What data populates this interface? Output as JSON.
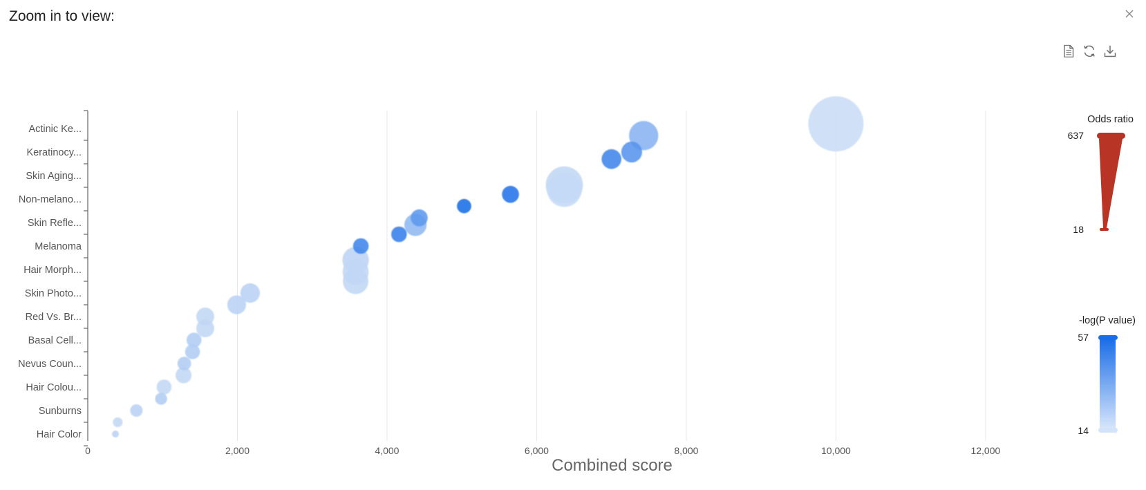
{
  "header": {
    "title": "Zoom in to view:"
  },
  "toolbar": {
    "buttons": [
      {
        "icon": "document-icon"
      },
      {
        "icon": "refresh-icon"
      },
      {
        "icon": "download-icon"
      }
    ]
  },
  "colors": {
    "bubble_high": "#1a6ee8",
    "bubble_low": "#c9dcf6",
    "odds_ratio_bar": "#b83424",
    "grid": "#e3e6ee",
    "axis": "#666666"
  },
  "chart_data": {
    "type": "scatter",
    "xlabel": "Combined score",
    "xlim": [
      0,
      12500
    ],
    "xticks": [
      "0",
      "2,000",
      "4,000",
      "6,000",
      "8,000",
      "10,000",
      "12,000"
    ],
    "xtick_values": [
      0,
      2000,
      4000,
      6000,
      8000,
      10000,
      12000
    ],
    "grid": true,
    "categories": [
      "Actinic Ke...",
      "Keratinocy...",
      "Skin Aging...",
      "Non-melano...",
      "Skin Refle...",
      "Melanoma",
      "Hair Morph...",
      "Skin Photo...",
      "Red Vs. Br...",
      "Basal Cell...",
      "Nevus Coun...",
      "Hair Colou...",
      "Sunburns",
      "Hair Color"
    ],
    "points": [
      {
        "x": 10000,
        "y": 13.2,
        "odds_ratio": 637,
        "neglogp": 14
      },
      {
        "x": 7430,
        "y": 12.7,
        "odds_ratio": 150,
        "neglogp": 30
      },
      {
        "x": 7270,
        "y": 12.0,
        "odds_ratio": 70,
        "neglogp": 42
      },
      {
        "x": 7000,
        "y": 11.7,
        "odds_ratio": 62,
        "neglogp": 48
      },
      {
        "x": 6370,
        "y": 10.4,
        "odds_ratio": 220,
        "neglogp": 15
      },
      {
        "x": 6370,
        "y": 10.6,
        "odds_ratio": 260,
        "neglogp": 16
      },
      {
        "x": 5650,
        "y": 10.2,
        "odds_ratio": 45,
        "neglogp": 55
      },
      {
        "x": 5030,
        "y": 9.7,
        "odds_ratio": 33,
        "neglogp": 57
      },
      {
        "x": 4430,
        "y": 9.2,
        "odds_ratio": 45,
        "neglogp": 40
      },
      {
        "x": 4380,
        "y": 8.9,
        "odds_ratio": 80,
        "neglogp": 28
      },
      {
        "x": 4160,
        "y": 8.5,
        "odds_ratio": 38,
        "neglogp": 50
      },
      {
        "x": 3650,
        "y": 8.0,
        "odds_ratio": 38,
        "neglogp": 48
      },
      {
        "x": 3580,
        "y": 6.5,
        "odds_ratio": 110,
        "neglogp": 16
      },
      {
        "x": 3580,
        "y": 6.9,
        "odds_ratio": 115,
        "neglogp": 16
      },
      {
        "x": 3580,
        "y": 7.4,
        "odds_ratio": 120,
        "neglogp": 17
      },
      {
        "x": 2170,
        "y": 6.0,
        "odds_ratio": 60,
        "neglogp": 18
      },
      {
        "x": 1990,
        "y": 5.5,
        "odds_ratio": 55,
        "neglogp": 18
      },
      {
        "x": 1570,
        "y": 5.0,
        "odds_ratio": 50,
        "neglogp": 16
      },
      {
        "x": 1570,
        "y": 4.5,
        "odds_ratio": 50,
        "neglogp": 16
      },
      {
        "x": 1420,
        "y": 4.0,
        "odds_ratio": 35,
        "neglogp": 20
      },
      {
        "x": 1400,
        "y": 3.5,
        "odds_ratio": 35,
        "neglogp": 20
      },
      {
        "x": 1290,
        "y": 3.0,
        "odds_ratio": 30,
        "neglogp": 20
      },
      {
        "x": 1280,
        "y": 2.5,
        "odds_ratio": 40,
        "neglogp": 16
      },
      {
        "x": 1020,
        "y": 2.0,
        "odds_ratio": 35,
        "neglogp": 16
      },
      {
        "x": 980,
        "y": 1.5,
        "odds_ratio": 25,
        "neglogp": 20
      },
      {
        "x": 650,
        "y": 1.0,
        "odds_ratio": 26,
        "neglogp": 18
      },
      {
        "x": 400,
        "y": 0.5,
        "odds_ratio": 20,
        "neglogp": 16
      },
      {
        "x": 370,
        "y": 0.0,
        "odds_ratio": 18,
        "neglogp": 18
      }
    ],
    "legend": {
      "size": {
        "title": "Odds ratio",
        "max": 637,
        "min": 18
      },
      "color": {
        "title": "-log(P value)",
        "max": 57,
        "min": 14
      },
      "placement": "right"
    }
  }
}
